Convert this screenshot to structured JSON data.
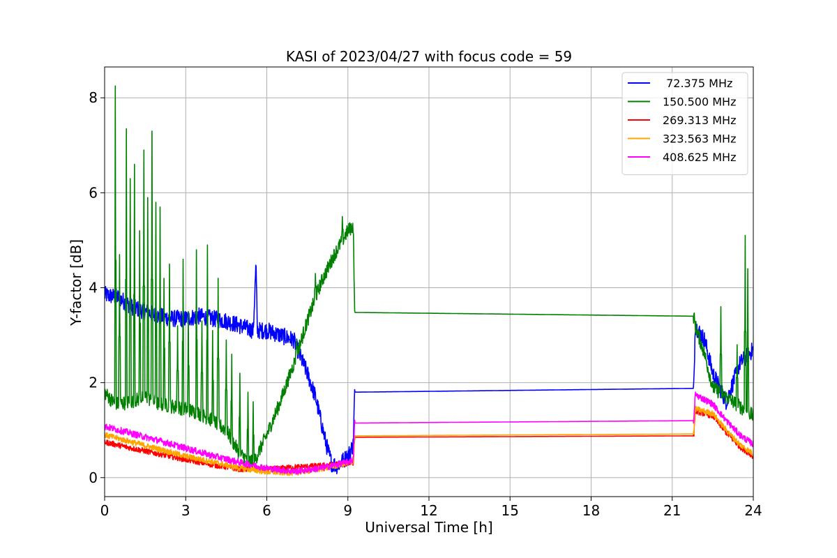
{
  "chart_data": {
    "type": "line",
    "title": "KASI of 2023/04/27 with focus code = 59",
    "xlabel": "Universal Time [h]",
    "ylabel": "Y-factor [dB]",
    "xlim": [
      0,
      24
    ],
    "ylim": [
      -0.4,
      8.65
    ],
    "xticks": [
      0,
      3,
      6,
      9,
      12,
      15,
      18,
      21,
      24
    ],
    "yticks": [
      0,
      2,
      4,
      6,
      8
    ],
    "grid": true,
    "legend_position": "top-right",
    "series": [
      {
        "name": " 72.375 MHz",
        "color": "#0000ff",
        "noise": 0.18,
        "x": [
          0,
          0.5,
          1,
          1.5,
          2,
          2.5,
          3,
          3.5,
          4,
          4.5,
          5,
          5.5,
          5.6,
          5.65,
          5.7,
          6,
          6.5,
          7,
          7.2,
          7.5,
          7.8,
          8,
          8.2,
          8.4,
          8.6,
          9,
          9.2,
          9.25,
          21.8,
          21.85,
          22.2,
          22.5,
          23,
          23.5,
          24
        ],
        "y": [
          3.85,
          3.8,
          3.6,
          3.5,
          3.4,
          3.35,
          3.35,
          3.4,
          3.35,
          3.3,
          3.2,
          3.1,
          4.5,
          3.1,
          3.1,
          3.1,
          3.0,
          2.9,
          2.6,
          2.2,
          1.7,
          1.2,
          0.7,
          0.3,
          0.25,
          0.45,
          0.7,
          1.8,
          1.88,
          3.2,
          2.9,
          2.2,
          1.6,
          2.4,
          2.7
        ]
      },
      {
        "name": "150.500 MHz",
        "color": "#008000",
        "noise": 0.15,
        "spikes": [
          [
            0.4,
            8.25
          ],
          [
            0.55,
            4.7
          ],
          [
            0.8,
            7.35
          ],
          [
            0.95,
            6.3
          ],
          [
            1.1,
            6.6
          ],
          [
            1.3,
            5.2
          ],
          [
            1.45,
            6.9
          ],
          [
            1.6,
            5.9
          ],
          [
            1.75,
            7.3
          ],
          [
            1.9,
            5.8
          ],
          [
            2.05,
            5.7
          ],
          [
            2.2,
            4.2
          ],
          [
            2.4,
            4.5
          ],
          [
            2.7,
            3.2
          ],
          [
            2.9,
            4.6
          ],
          [
            3.1,
            3.5
          ],
          [
            3.4,
            4.8
          ],
          [
            3.6,
            3.3
          ],
          [
            3.8,
            4.9
          ],
          [
            4.0,
            3.1
          ],
          [
            4.2,
            4.2
          ],
          [
            4.5,
            2.9
          ],
          [
            4.7,
            2.6
          ],
          [
            5.0,
            2.2
          ],
          [
            5.3,
            1.8
          ],
          [
            5.5,
            1.6
          ],
          [
            7.1,
            2.9
          ],
          [
            7.8,
            4.3
          ],
          [
            8.8,
            5.5
          ],
          [
            22.8,
            3.6
          ],
          [
            23.4,
            2.8
          ],
          [
            23.7,
            5.1
          ],
          [
            23.8,
            4.4
          ]
        ],
        "x": [
          0,
          0.3,
          0.5,
          1,
          1.5,
          2,
          2.5,
          3,
          3.5,
          4,
          4.5,
          5,
          5.5,
          6,
          6.5,
          7,
          7.5,
          8,
          8.5,
          9,
          9.2,
          9.25,
          21.8,
          21.85,
          22.2,
          22.5,
          23,
          23.5,
          24
        ],
        "y": [
          1.8,
          1.6,
          1.55,
          1.6,
          1.7,
          1.55,
          1.5,
          1.45,
          1.35,
          1.2,
          1.0,
          0.5,
          0.3,
          0.9,
          1.6,
          2.4,
          3.3,
          4.1,
          4.7,
          5.2,
          5.3,
          3.48,
          3.4,
          3.2,
          2.6,
          1.9,
          1.7,
          1.5,
          1.3
        ]
      },
      {
        "name": "269.313 MHz",
        "color": "#ff0000",
        "noise": 0.06,
        "x": [
          0,
          1,
          2,
          3,
          4,
          5,
          6,
          7,
          8,
          9,
          9.2,
          9.25,
          21.8,
          21.85,
          22.5,
          23,
          23.5,
          24
        ],
        "y": [
          0.75,
          0.62,
          0.5,
          0.38,
          0.27,
          0.18,
          0.17,
          0.22,
          0.25,
          0.3,
          0.32,
          0.85,
          0.88,
          1.4,
          1.3,
          0.95,
          0.65,
          0.45
        ]
      },
      {
        "name": "323.563 MHz",
        "color": "#ffa500",
        "noise": 0.06,
        "x": [
          0,
          1,
          2,
          3,
          4,
          5,
          6,
          7,
          8,
          9,
          9.2,
          9.25,
          21.8,
          21.85,
          22.5,
          23,
          23.5,
          24
        ],
        "y": [
          0.9,
          0.75,
          0.6,
          0.45,
          0.33,
          0.2,
          0.12,
          0.1,
          0.18,
          0.3,
          0.35,
          0.88,
          0.92,
          1.45,
          1.35,
          1.0,
          0.7,
          0.5
        ]
      },
      {
        "name": "408.625 MHz",
        "color": "#ff00ff",
        "noise": 0.07,
        "x": [
          0,
          1,
          2,
          3,
          4,
          5,
          6,
          7,
          8,
          9,
          9.2,
          9.25,
          21.8,
          21.85,
          22.5,
          23,
          23.5,
          24
        ],
        "y": [
          1.08,
          0.93,
          0.78,
          0.62,
          0.46,
          0.32,
          0.2,
          0.13,
          0.2,
          0.33,
          0.38,
          1.15,
          1.2,
          1.75,
          1.55,
          1.2,
          0.9,
          0.7
        ]
      }
    ]
  }
}
